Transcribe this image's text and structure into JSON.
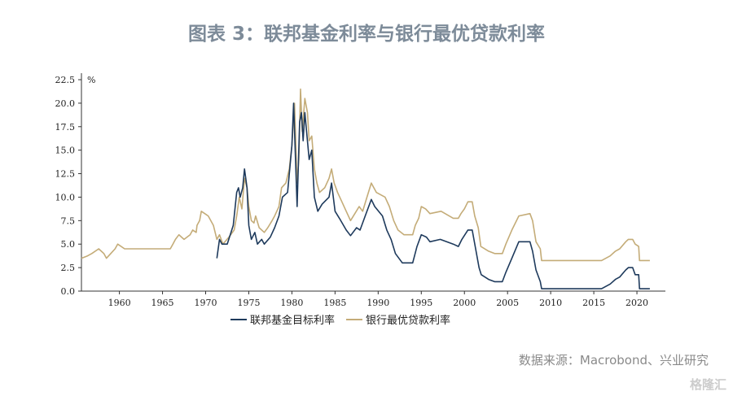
{
  "title": "图表 3：联邦基金利率与银行最优贷款利率",
  "source": "数据来源：Macrobond、兴业研究",
  "watermark": "格隆汇",
  "chart_data": {
    "type": "line",
    "title": "图表 3：联邦基金利率与银行最优贷款利率",
    "ylabel": "%",
    "xlim": [
      1955.6,
      2023.3
    ],
    "ylim": [
      0,
      22.5
    ],
    "yticks": [
      "0.0",
      "2.5",
      "5.0",
      "7.5",
      "10.0",
      "12.5",
      "15.0",
      "17.5",
      "20.0",
      "22.5"
    ],
    "xticks": [
      "1960",
      "1965",
      "1970",
      "1975",
      "1980",
      "1985",
      "1990",
      "1995",
      "2000",
      "2005",
      "2010",
      "2015",
      "2020"
    ],
    "grid": false,
    "legend_position": "bottom",
    "series": [
      {
        "name": "联邦基金目标利率",
        "color": "#1e3a5c",
        "points": [
          [
            1971.3,
            3.5
          ],
          [
            1971.6,
            5.5
          ],
          [
            1971.9,
            5.0
          ],
          [
            1972.5,
            5.0
          ],
          [
            1973.2,
            7
          ],
          [
            1973.6,
            10.5
          ],
          [
            1973.8,
            11
          ],
          [
            1974.0,
            10
          ],
          [
            1974.3,
            11
          ],
          [
            1974.5,
            13
          ],
          [
            1974.8,
            11
          ],
          [
            1975.0,
            7
          ],
          [
            1975.3,
            5.5
          ],
          [
            1975.7,
            6.25
          ],
          [
            1976.0,
            5
          ],
          [
            1976.5,
            5.5
          ],
          [
            1976.8,
            5.0
          ],
          [
            1977.5,
            5.75
          ],
          [
            1978.0,
            6.75
          ],
          [
            1978.5,
            8.0
          ],
          [
            1978.9,
            10
          ],
          [
            1979.5,
            10.5
          ],
          [
            1979.8,
            13.5
          ],
          [
            1980.0,
            15.5
          ],
          [
            1980.2,
            20
          ],
          [
            1980.6,
            9
          ],
          [
            1980.9,
            18
          ],
          [
            1981.1,
            19
          ],
          [
            1981.3,
            16
          ],
          [
            1981.5,
            19
          ],
          [
            1982.0,
            14
          ],
          [
            1982.3,
            15
          ],
          [
            1982.6,
            10
          ],
          [
            1983.0,
            8.5
          ],
          [
            1983.5,
            9.25
          ],
          [
            1984.3,
            10
          ],
          [
            1984.6,
            11.5
          ],
          [
            1985.0,
            8.5
          ],
          [
            1985.5,
            7.75
          ],
          [
            1986.3,
            6.5
          ],
          [
            1986.8,
            5.9
          ],
          [
            1987.5,
            6.75
          ],
          [
            1987.9,
            6.5
          ],
          [
            1988.5,
            8
          ],
          [
            1989.2,
            9.75
          ],
          [
            1989.6,
            9.0
          ],
          [
            1990.5,
            8.0
          ],
          [
            1991.0,
            6.5
          ],
          [
            1991.5,
            5.5
          ],
          [
            1992.0,
            4
          ],
          [
            1992.8,
            3
          ],
          [
            1994.0,
            3.0
          ],
          [
            1994.5,
            4.75
          ],
          [
            1995.0,
            6.0
          ],
          [
            1995.6,
            5.75
          ],
          [
            1996.0,
            5.25
          ],
          [
            1997.2,
            5.5
          ],
          [
            1998.7,
            5.0
          ],
          [
            1999.3,
            4.75
          ],
          [
            1999.7,
            5.5
          ],
          [
            2000.4,
            6.5
          ],
          [
            2000.9,
            6.5
          ],
          [
            2001.3,
            4.5
          ],
          [
            2001.7,
            2.5
          ],
          [
            2001.95,
            1.75
          ],
          [
            2002.8,
            1.25
          ],
          [
            2003.5,
            1.0
          ],
          [
            2004.4,
            1.0
          ],
          [
            2004.8,
            2.0
          ],
          [
            2005.5,
            3.5
          ],
          [
            2006.3,
            5.25
          ],
          [
            2007.6,
            5.25
          ],
          [
            2007.9,
            4.25
          ],
          [
            2008.3,
            2.25
          ],
          [
            2008.8,
            1.0
          ],
          [
            2008.95,
            0.25
          ],
          [
            2015.9,
            0.25
          ],
          [
            2016.9,
            0.75
          ],
          [
            2017.5,
            1.25
          ],
          [
            2018.0,
            1.5
          ],
          [
            2018.7,
            2.25
          ],
          [
            2019.0,
            2.5
          ],
          [
            2019.5,
            2.5
          ],
          [
            2019.8,
            1.75
          ],
          [
            2020.2,
            1.75
          ],
          [
            2020.3,
            0.25
          ],
          [
            2021.5,
            0.25
          ]
        ]
      },
      {
        "name": "银行最优贷款利率",
        "color": "#c4ac78",
        "points": [
          [
            1955.6,
            3.5
          ],
          [
            1956.3,
            3.75
          ],
          [
            1956.8,
            4.0
          ],
          [
            1957.6,
            4.5
          ],
          [
            1958.2,
            4.0
          ],
          [
            1958.5,
            3.5
          ],
          [
            1959.0,
            4.0
          ],
          [
            1959.5,
            4.5
          ],
          [
            1959.8,
            5.0
          ],
          [
            1960.6,
            4.5
          ],
          [
            1965.9,
            4.5
          ],
          [
            1966.2,
            5.0
          ],
          [
            1966.5,
            5.5
          ],
          [
            1966.9,
            6.0
          ],
          [
            1967.2,
            5.75
          ],
          [
            1967.5,
            5.5
          ],
          [
            1968.2,
            6.0
          ],
          [
            1968.5,
            6.5
          ],
          [
            1968.9,
            6.25
          ],
          [
            1969.0,
            7.0
          ],
          [
            1969.3,
            7.5
          ],
          [
            1969.5,
            8.5
          ],
          [
            1970.3,
            8.0
          ],
          [
            1970.9,
            7.0
          ],
          [
            1971.3,
            5.5
          ],
          [
            1971.6,
            6.0
          ],
          [
            1972.0,
            5.0
          ],
          [
            1972.7,
            5.75
          ],
          [
            1973.3,
            6.5
          ],
          [
            1973.6,
            8.0
          ],
          [
            1973.9,
            10
          ],
          [
            1974.2,
            8.75
          ],
          [
            1974.5,
            12
          ],
          [
            1974.8,
            11
          ],
          [
            1975.0,
            9
          ],
          [
            1975.3,
            7.5
          ],
          [
            1975.6,
            7.25
          ],
          [
            1975.8,
            8.0
          ],
          [
            1976.2,
            6.75
          ],
          [
            1976.8,
            6.25
          ],
          [
            1977.2,
            6.75
          ],
          [
            1977.7,
            7.5
          ],
          [
            1978.0,
            8.0
          ],
          [
            1978.5,
            9.0
          ],
          [
            1978.8,
            11.0
          ],
          [
            1979.3,
            11.5
          ],
          [
            1979.7,
            13.0
          ],
          [
            1980.0,
            15.5
          ],
          [
            1980.3,
            20
          ],
          [
            1980.6,
            11.5
          ],
          [
            1980.8,
            14
          ],
          [
            1981.0,
            21.5
          ],
          [
            1981.2,
            17
          ],
          [
            1981.5,
            20.5
          ],
          [
            1981.8,
            19
          ],
          [
            1982.0,
            16
          ],
          [
            1982.3,
            16.5
          ],
          [
            1982.6,
            13
          ],
          [
            1982.9,
            11.5
          ],
          [
            1983.2,
            10.5
          ],
          [
            1983.8,
            11
          ],
          [
            1984.3,
            12
          ],
          [
            1984.6,
            13
          ],
          [
            1984.9,
            11.5
          ],
          [
            1985.3,
            10.5
          ],
          [
            1985.8,
            9.5
          ],
          [
            1986.3,
            8.5
          ],
          [
            1986.8,
            7.5
          ],
          [
            1987.3,
            8.25
          ],
          [
            1987.8,
            9
          ],
          [
            1988.2,
            8.5
          ],
          [
            1988.7,
            10
          ],
          [
            1989.2,
            11.5
          ],
          [
            1989.5,
            11.0
          ],
          [
            1989.8,
            10.5
          ],
          [
            1990.8,
            10
          ],
          [
            1991.3,
            9
          ],
          [
            1991.8,
            7.5
          ],
          [
            1992.3,
            6.5
          ],
          [
            1993.0,
            6.0
          ],
          [
            1994.0,
            6.0
          ],
          [
            1994.3,
            7.0
          ],
          [
            1994.7,
            7.75
          ],
          [
            1995.0,
            9.0
          ],
          [
            1995.5,
            8.75
          ],
          [
            1996.0,
            8.25
          ],
          [
            1997.3,
            8.5
          ],
          [
            1998.7,
            7.75
          ],
          [
            1999.3,
            7.75
          ],
          [
            1999.6,
            8.25
          ],
          [
            2000.0,
            8.75
          ],
          [
            2000.4,
            9.5
          ],
          [
            2000.9,
            9.5
          ],
          [
            2001.2,
            8.0
          ],
          [
            2001.6,
            6.75
          ],
          [
            2001.9,
            4.75
          ],
          [
            2002.8,
            4.25
          ],
          [
            2003.5,
            4.0
          ],
          [
            2004.4,
            4.0
          ],
          [
            2004.8,
            5.0
          ],
          [
            2005.5,
            6.5
          ],
          [
            2006.3,
            8.0
          ],
          [
            2007.6,
            8.25
          ],
          [
            2007.9,
            7.5
          ],
          [
            2008.3,
            5.25
          ],
          [
            2008.8,
            4.5
          ],
          [
            2008.95,
            3.25
          ],
          [
            2015.9,
            3.25
          ],
          [
            2016.9,
            3.75
          ],
          [
            2017.5,
            4.25
          ],
          [
            2018.0,
            4.5
          ],
          [
            2018.7,
            5.25
          ],
          [
            2019.0,
            5.5
          ],
          [
            2019.5,
            5.5
          ],
          [
            2019.8,
            5.0
          ],
          [
            2020.2,
            4.75
          ],
          [
            2020.3,
            3.25
          ],
          [
            2021.5,
            3.25
          ]
        ]
      }
    ]
  }
}
